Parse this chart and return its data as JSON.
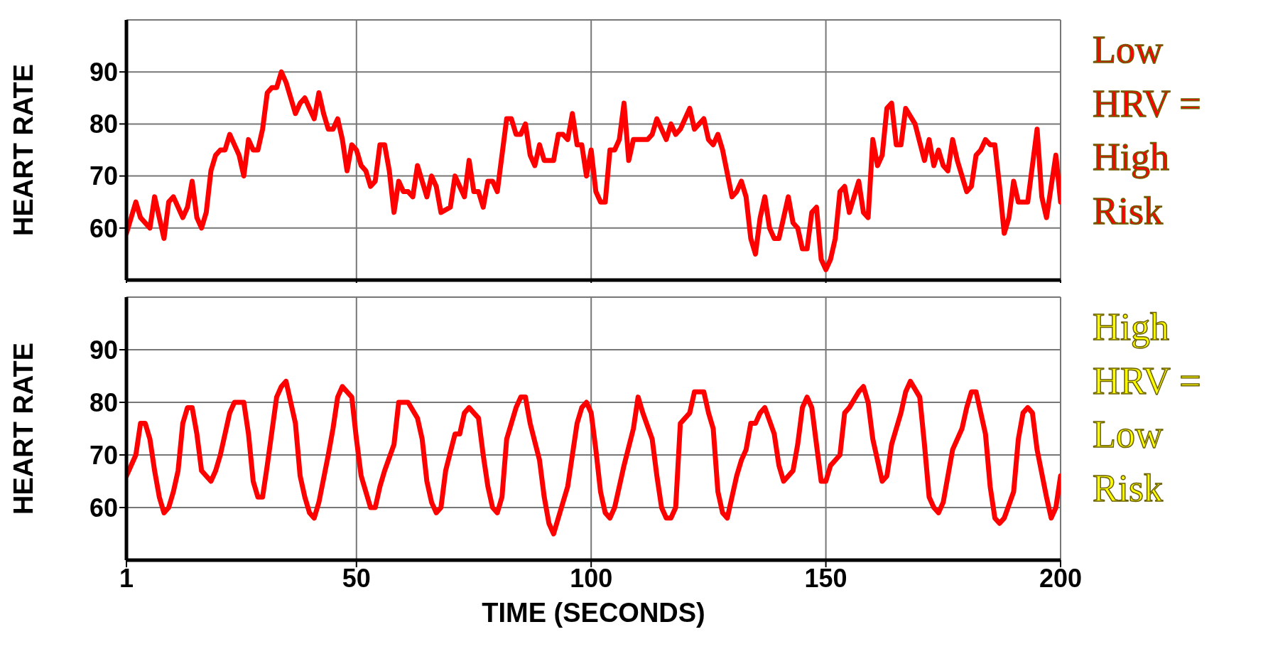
{
  "chart_data": [
    {
      "type": "line",
      "ylabel": "HEART RATE",
      "annotations": [
        "Low HRV = High Risk"
      ],
      "tick_labels": "y",
      "grid": true,
      "xlim": [
        1,
        200
      ],
      "xticks": [
        1,
        50,
        100,
        150,
        200
      ],
      "ylim": [
        50,
        100
      ],
      "yticks": [
        60,
        70,
        80,
        90
      ],
      "x": [
        1,
        3,
        4,
        6,
        7,
        9,
        10,
        11,
        13,
        14,
        15,
        16,
        17,
        18,
        19,
        20,
        21,
        22,
        23,
        24,
        25,
        26,
        27,
        28,
        29,
        30,
        31,
        32,
        33,
        34,
        35,
        36,
        37,
        38,
        39,
        40,
        41,
        42,
        43,
        44,
        45,
        46,
        47,
        48,
        49,
        50,
        51,
        52,
        53,
        54,
        55,
        56,
        57,
        58,
        59,
        60,
        61,
        62,
        63,
        64,
        65,
        66,
        67,
        68,
        70,
        71,
        72,
        73,
        74,
        75,
        76,
        77,
        78,
        79,
        80,
        81,
        82,
        83,
        84,
        85,
        86,
        87,
        88,
        89,
        90,
        92,
        93,
        94,
        95,
        96,
        97,
        98,
        99,
        100,
        101,
        102,
        103,
        104,
        105,
        106,
        107,
        108,
        109,
        112,
        113,
        114,
        116,
        117,
        118,
        119,
        121,
        122,
        124,
        125,
        126,
        127,
        128,
        130,
        131,
        132,
        133,
        134,
        135,
        136,
        137,
        138,
        139,
        140,
        142,
        143,
        144,
        145,
        146,
        147,
        148,
        149,
        150,
        151,
        152,
        153,
        154,
        155,
        157,
        158,
        159,
        160,
        161,
        162,
        163,
        164,
        165,
        166,
        167,
        169,
        171,
        172,
        173,
        174,
        175,
        176,
        177,
        178,
        180,
        181,
        182,
        183,
        184,
        185,
        186,
        187,
        188,
        189,
        190,
        191,
        193,
        195,
        196,
        197,
        199,
        200
      ],
      "series": [
        {
          "color": "#ff0000",
          "values": [
            59,
            65,
            62,
            60,
            66,
            58,
            65,
            66,
            62,
            64,
            69,
            62,
            60,
            63,
            71,
            74,
            75,
            75,
            78,
            76,
            74,
            70,
            77,
            75,
            75,
            79,
            86,
            87,
            87,
            90,
            88,
            85,
            82,
            84,
            85,
            83,
            81,
            86,
            82,
            79,
            79,
            81,
            77,
            71,
            76,
            75,
            72,
            71,
            68,
            69,
            76,
            76,
            71,
            63,
            69,
            67,
            67,
            66,
            72,
            69,
            66,
            70,
            68,
            63,
            64,
            70,
            68,
            66,
            73,
            67,
            67,
            64,
            69,
            69,
            67,
            74,
            81,
            81,
            78,
            78,
            80,
            74,
            72,
            76,
            73,
            73,
            78,
            78,
            77,
            82,
            76,
            76,
            70,
            75,
            67,
            65,
            65,
            75,
            75,
            77,
            84,
            73,
            77,
            77,
            78,
            81,
            77,
            80,
            78,
            79,
            83,
            79,
            81,
            77,
            76,
            78,
            75,
            66,
            67,
            69,
            66,
            58,
            55,
            62,
            66,
            60,
            58,
            58,
            66,
            61,
            60,
            56,
            56,
            63,
            64,
            54,
            52,
            54,
            58,
            67,
            68,
            63,
            69,
            63,
            62,
            77,
            72,
            74,
            83,
            84,
            76,
            76,
            83,
            80,
            73,
            77,
            72,
            75,
            72,
            71,
            77,
            73,
            67,
            68,
            74,
            75,
            77,
            76,
            76,
            68,
            59,
            62,
            69,
            65,
            65,
            79,
            66,
            62,
            74,
            65
          ]
        }
      ]
    },
    {
      "type": "line",
      "ylabel": "HEART RATE",
      "xlabel": "TIME (SECONDS)",
      "annotations": [
        "High HRV = Low Risk"
      ],
      "grid": true,
      "xlim": [
        1,
        200
      ],
      "xticks": [
        1,
        50,
        100,
        150,
        200
      ],
      "ylim": [
        50,
        100
      ],
      "yticks": [
        60,
        70,
        80,
        90
      ],
      "x": [
        1,
        2,
        3,
        4,
        5,
        6,
        7,
        8,
        9,
        10,
        11,
        12,
        13,
        14,
        15,
        16,
        17,
        19,
        20,
        21,
        22,
        23,
        24,
        26,
        27,
        28,
        29,
        30,
        31,
        33,
        34,
        35,
        37,
        38,
        39,
        40,
        41,
        42,
        44,
        45,
        46,
        47,
        49,
        50,
        51,
        52,
        53,
        54,
        55,
        56,
        58,
        59,
        61,
        63,
        64,
        65,
        66,
        67,
        68,
        69,
        71,
        72,
        73,
        74,
        75,
        76,
        77,
        78,
        79,
        80,
        81,
        82,
        84,
        85,
        86,
        87,
        89,
        90,
        91,
        92,
        93,
        95,
        96,
        97,
        98,
        99,
        100,
        101,
        102,
        103,
        104,
        105,
        107,
        109,
        110,
        111,
        113,
        114,
        115,
        116,
        117,
        118,
        119,
        121,
        122,
        124,
        125,
        126,
        127,
        128,
        129,
        131,
        132,
        133,
        134,
        135,
        136,
        137,
        139,
        140,
        141,
        142,
        143,
        144,
        145,
        146,
        147,
        148,
        149,
        150,
        151,
        153,
        154,
        155,
        157,
        158,
        159,
        160,
        162,
        163,
        164,
        166,
        167,
        168,
        170,
        171,
        172,
        173,
        174,
        175,
        177,
        179,
        180,
        181,
        182,
        184,
        185,
        186,
        187,
        188,
        190,
        191,
        192,
        193,
        194,
        195,
        197,
        198,
        199,
        200
      ],
      "series": [
        {
          "color": "#ff0000",
          "values": [
            66,
            68,
            70,
            76,
            76,
            73,
            67,
            62,
            59,
            60,
            63,
            67,
            76,
            79,
            79,
            74,
            67,
            65,
            67,
            70,
            74,
            78,
            80,
            80,
            74,
            65,
            62,
            62,
            68,
            81,
            83,
            84,
            76,
            66,
            62,
            59,
            58,
            61,
            70,
            75,
            81,
            83,
            81,
            73,
            66,
            63,
            60,
            60,
            64,
            67,
            72,
            80,
            80,
            77,
            73,
            65,
            61,
            59,
            60,
            67,
            74,
            74,
            78,
            79,
            78,
            77,
            70,
            64,
            60,
            59,
            62,
            73,
            79,
            81,
            81,
            76,
            69,
            62,
            57,
            55,
            58,
            64,
            70,
            76,
            79,
            80,
            78,
            71,
            63,
            59,
            58,
            60,
            68,
            75,
            81,
            78,
            73,
            66,
            60,
            58,
            58,
            60,
            76,
            78,
            82,
            82,
            78,
            75,
            63,
            59,
            58,
            66,
            69,
            71,
            76,
            76,
            78,
            79,
            74,
            68,
            65,
            66,
            67,
            72,
            79,
            81,
            79,
            72,
            65,
            65,
            68,
            70,
            78,
            79,
            82,
            83,
            80,
            73,
            65,
            66,
            72,
            78,
            82,
            84,
            81,
            72,
            62,
            60,
            59,
            61,
            71,
            75,
            79,
            82,
            82,
            74,
            64,
            58,
            57,
            58,
            63,
            73,
            78,
            79,
            78,
            71,
            62,
            58,
            60,
            66
          ]
        }
      ]
    }
  ]
}
